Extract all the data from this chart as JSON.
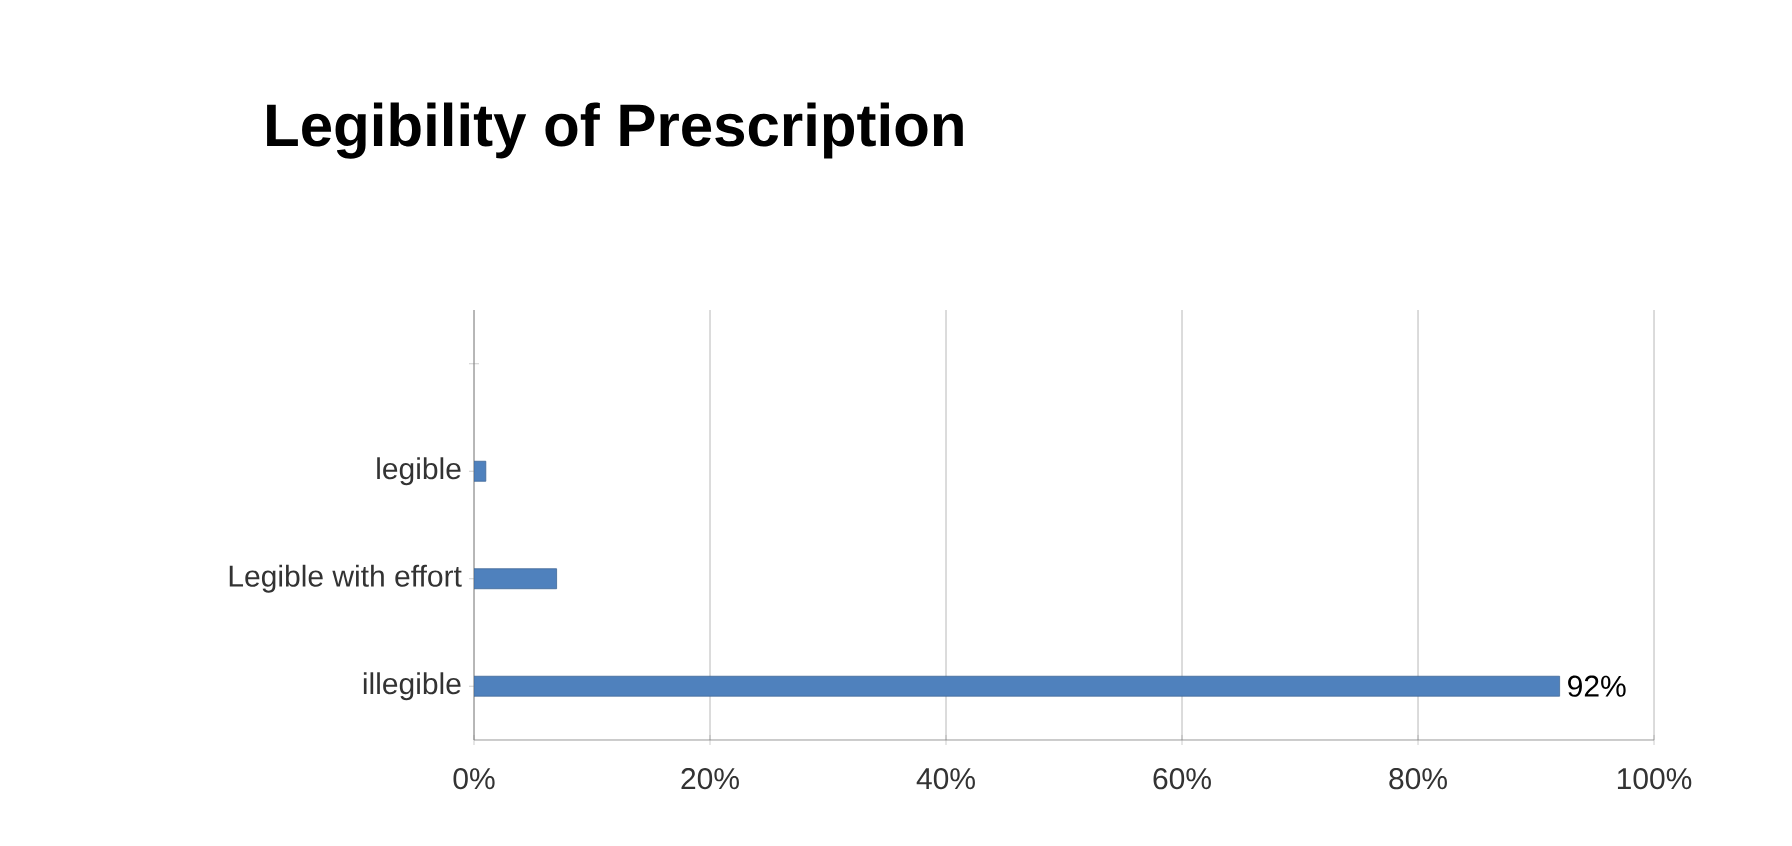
{
  "chart_data": {
    "type": "bar",
    "orientation": "horizontal",
    "title": "Legibility of Prescription",
    "categories": [
      null,
      "legible",
      "Legible with effort",
      "illegible"
    ],
    "values": [
      null,
      1,
      7,
      92
    ],
    "value_labels": [
      null,
      null,
      null,
      "92%"
    ],
    "color": "#4f81bd",
    "xlim": [
      0,
      100
    ],
    "xticks": [
      {
        "value": 0,
        "label": "0%"
      },
      {
        "value": 20,
        "label": "20%"
      },
      {
        "value": 40,
        "label": "40%"
      },
      {
        "value": 60,
        "label": "60%"
      },
      {
        "value": 80,
        "label": "80%"
      },
      {
        "value": 100,
        "label": "100%"
      }
    ],
    "grid": "x"
  }
}
